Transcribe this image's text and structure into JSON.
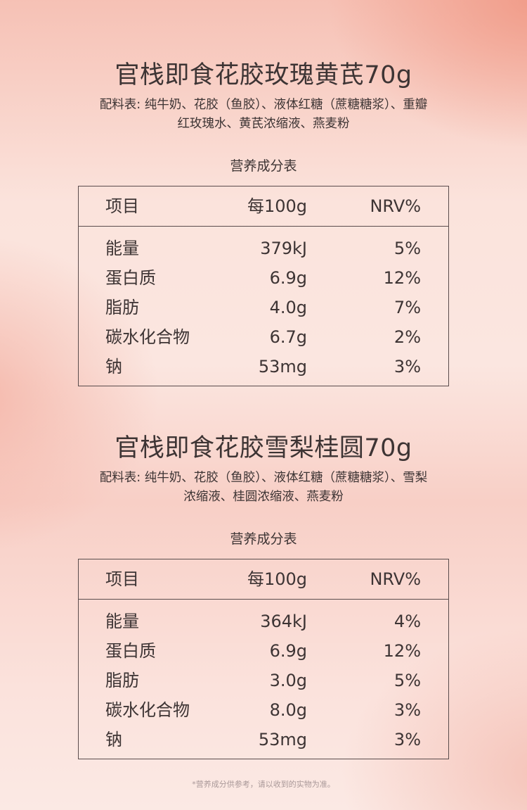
{
  "products": [
    {
      "title": "官栈即食花胶玫瑰黄芪70g",
      "ingredients_line1": "配料表: 纯牛奶、花胶（鱼胶）、液体红糖（蔗糖糖浆）、重瓣",
      "ingredients_line2": "红玫瑰水、黄芪浓缩液、燕麦粉",
      "table_title": "营养成分表",
      "headers": [
        "项目",
        "每100g",
        "NRV%"
      ],
      "rows": [
        [
          "能量",
          "379kJ",
          "5%"
        ],
        [
          "蛋白质",
          "6.9g",
          "12%"
        ],
        [
          "脂肪",
          "4.0g",
          "7%"
        ],
        [
          "碳水化合物",
          "6.7g",
          "2%"
        ],
        [
          "钠",
          "53mg",
          "3%"
        ]
      ]
    },
    {
      "title": "官栈即食花胶雪梨桂圆70g",
      "ingredients_line1": "配料表: 纯牛奶、花胶（鱼胶）、液体红糖（蔗糖糖浆）、雪梨",
      "ingredients_line2": "浓缩液、桂圆浓缩液、燕麦粉",
      "table_title": "营养成分表",
      "headers": [
        "项目",
        "每100g",
        "NRV%"
      ],
      "rows": [
        [
          "能量",
          "364kJ",
          "4%"
        ],
        [
          "蛋白质",
          "6.9g",
          "12%"
        ],
        [
          "脂肪",
          "3.0g",
          "5%"
        ],
        [
          "碳水化合物",
          "8.0g",
          "3%"
        ],
        [
          "钠",
          "53mg",
          "3%"
        ]
      ]
    }
  ],
  "footnote": "*营养成分供参考，请以收到的实物为准。"
}
